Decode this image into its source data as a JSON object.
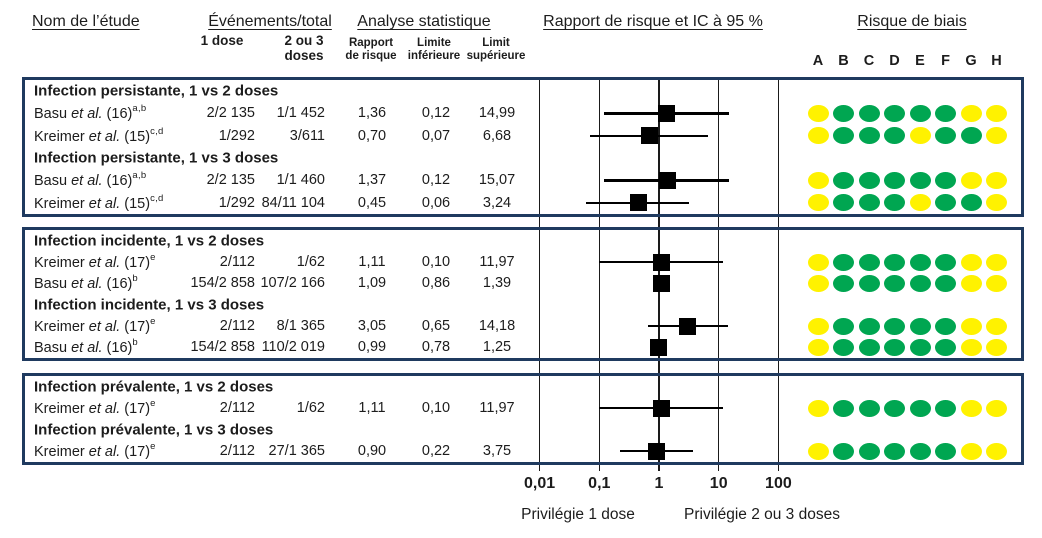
{
  "figure": {
    "headers": {
      "study": "Nom de l’étude",
      "events": "Événements/total",
      "events_sub_1dose": "1 dose",
      "events_sub_2or3": "2 ou 3\ndoses",
      "stats": "Analyse statistique",
      "stats_sub_rr": "Rapport\nde risque",
      "stats_sub_ll": "Limite\ninférieure",
      "stats_sub_ul": "Limit\nsupérieure",
      "plot": "Rapport de risque et IC à 95 %",
      "bias": "Risque de biais",
      "bias_letters": [
        "A",
        "B",
        "C",
        "D",
        "E",
        "F",
        "G",
        "H"
      ]
    },
    "sections": [
      {
        "groups": [
          {
            "label": "Infection persistante, 1 vs 2 doses",
            "studies": [
              {
                "name_pre": "Basu",
                "name_etal": "et al.",
                "name_ref": "(16)",
                "name_sup": "a,b",
                "dose1": "2/2 135",
                "doses23": "1/1 452",
                "rr": "1,36",
                "ll": "0,12",
                "ul": "14,99",
                "bias": [
                  "Y",
                  "G",
                  "G",
                  "G",
                  "G",
                  "G",
                  "Y",
                  "Y"
                ]
              },
              {
                "name_pre": "Kreimer",
                "name_etal": "et al.",
                "name_ref": "(15)",
                "name_sup": "c,d",
                "dose1": "1/292",
                "doses23": "3/611",
                "rr": "0,70",
                "ll": "0,07",
                "ul": "6,68",
                "bias": [
                  "Y",
                  "G",
                  "G",
                  "G",
                  "Y",
                  "G",
                  "G",
                  "Y"
                ]
              }
            ]
          },
          {
            "label": "Infection persistante, 1 vs 3 doses",
            "studies": [
              {
                "name_pre": "Basu",
                "name_etal": "et al.",
                "name_ref": "(16)",
                "name_sup": "a,b",
                "dose1": "2/2 135",
                "doses23": "1/1 460",
                "rr": "1,37",
                "ll": "0,12",
                "ul": "15,07",
                "bias": [
                  "Y",
                  "G",
                  "G",
                  "G",
                  "G",
                  "G",
                  "Y",
                  "Y"
                ]
              },
              {
                "name_pre": "Kreimer",
                "name_etal": "et al.",
                "name_ref": "(15)",
                "name_sup": "c,d",
                "dose1": "1/292",
                "doses23": "84/11 104",
                "rr": "0,45",
                "ll": "0,06",
                "ul": "3,24",
                "bias": [
                  "Y",
                  "G",
                  "G",
                  "G",
                  "Y",
                  "G",
                  "G",
                  "Y"
                ]
              }
            ]
          }
        ]
      },
      {
        "groups": [
          {
            "label": "Infection incidente, 1 vs 2 doses",
            "studies": [
              {
                "name_pre": "Kreimer",
                "name_etal": "et al.",
                "name_ref": "(17)",
                "name_sup": "e",
                "dose1": "2/112",
                "doses23": "1/62",
                "rr": "1,11",
                "ll": "0,10",
                "ul": "11,97",
                "bias": [
                  "Y",
                  "G",
                  "G",
                  "G",
                  "G",
                  "G",
                  "Y",
                  "Y"
                ]
              },
              {
                "name_pre": "Basu",
                "name_etal": "et al.",
                "name_ref": "(16)",
                "name_sup": "b",
                "dose1": "154/2 858",
                "doses23": "107/2 166",
                "rr": "1,09",
                "ll": "0,86",
                "ul": "1,39",
                "bias": [
                  "Y",
                  "G",
                  "G",
                  "G",
                  "G",
                  "G",
                  "Y",
                  "Y"
                ]
              }
            ]
          },
          {
            "label": "Infection incidente, 1 vs 3 doses",
            "studies": [
              {
                "name_pre": "Kreimer",
                "name_etal": "et al.",
                "name_ref": "(17)",
                "name_sup": "e",
                "dose1": "2/112",
                "doses23": "8/1 365",
                "rr": "3,05",
                "ll": "0,65",
                "ul": "14,18",
                "bias": [
                  "Y",
                  "G",
                  "G",
                  "G",
                  "G",
                  "G",
                  "Y",
                  "Y"
                ]
              },
              {
                "name_pre": "Basu",
                "name_etal": "et al.",
                "name_ref": "(16)",
                "name_sup": "b",
                "dose1": "154/2 858",
                "doses23": "110/2 019",
                "rr": "0,99",
                "ll": "0,78",
                "ul": "1,25",
                "bias": [
                  "Y",
                  "G",
                  "G",
                  "G",
                  "G",
                  "G",
                  "Y",
                  "Y"
                ]
              }
            ]
          }
        ]
      },
      {
        "groups": [
          {
            "label": "Infection prévalente, 1 vs 2 doses",
            "studies": [
              {
                "name_pre": "Kreimer",
                "name_etal": "et al.",
                "name_ref": "(17)",
                "name_sup": "e",
                "dose1": "2/112",
                "doses23": "1/62",
                "rr": "1,11",
                "ll": "0,10",
                "ul": "11,97",
                "bias": [
                  "Y",
                  "G",
                  "G",
                  "G",
                  "G",
                  "G",
                  "Y",
                  "Y"
                ]
              }
            ]
          },
          {
            "label": "Infection prévalente, 1 vs 3 doses",
            "studies": [
              {
                "name_pre": "Kreimer",
                "name_etal": "et al.",
                "name_ref": "(17)",
                "name_sup": "e",
                "dose1": "2/112",
                "doses23": "27/1 365",
                "rr": "0,90",
                "ll": "0,22",
                "ul": "3,75",
                "bias": [
                  "Y",
                  "G",
                  "G",
                  "G",
                  "G",
                  "G",
                  "Y",
                  "Y"
                ]
              }
            ]
          }
        ]
      }
    ],
    "axis": {
      "tick_labels": [
        "0,01",
        "0,1",
        "1",
        "10",
        "100"
      ],
      "tick_values": [
        0.01,
        0.1,
        1,
        10,
        100
      ],
      "caption_left": "Privilégie 1 dose",
      "caption_right": "Privilégie 2 ou 3 doses"
    },
    "colors": {
      "green": "#00A651",
      "yellow": "#FFF200",
      "navy": "#1F3A5F",
      "marker": "#000000"
    }
  },
  "chart_data": {
    "type": "scatter",
    "subtype": "forest-plot",
    "title": "Rapport de risque et IC à 95 %",
    "x_scale": "log",
    "xlim": [
      0.01,
      100
    ],
    "x_ticks": [
      0.01,
      0.1,
      1,
      10,
      100
    ],
    "x_tick_labels": [
      "0,01",
      "0,1",
      "1",
      "10",
      "100"
    ],
    "grid": "vertical-log-decades",
    "annotation_left": "Privilégie 1 dose",
    "annotation_right": "Privilégie 2 ou 3 doses",
    "points": [
      {
        "group": "Infection persistante, 1 vs 2 doses",
        "study": "Basu et al. (16)",
        "rr": 1.36,
        "ci_low": 0.12,
        "ci_high": 14.99
      },
      {
        "group": "Infection persistante, 1 vs 2 doses",
        "study": "Kreimer et al. (15)",
        "rr": 0.7,
        "ci_low": 0.07,
        "ci_high": 6.68
      },
      {
        "group": "Infection persistante, 1 vs 3 doses",
        "study": "Basu et al. (16)",
        "rr": 1.37,
        "ci_low": 0.12,
        "ci_high": 15.07
      },
      {
        "group": "Infection persistante, 1 vs 3 doses",
        "study": "Kreimer et al. (15)",
        "rr": 0.45,
        "ci_low": 0.06,
        "ci_high": 3.24
      },
      {
        "group": "Infection incidente, 1 vs 2 doses",
        "study": "Kreimer et al. (17)",
        "rr": 1.11,
        "ci_low": 0.1,
        "ci_high": 11.97
      },
      {
        "group": "Infection incidente, 1 vs 2 doses",
        "study": "Basu et al. (16)",
        "rr": 1.09,
        "ci_low": 0.86,
        "ci_high": 1.39
      },
      {
        "group": "Infection incidente, 1 vs 3 doses",
        "study": "Kreimer et al. (17)",
        "rr": 3.05,
        "ci_low": 0.65,
        "ci_high": 14.18
      },
      {
        "group": "Infection incidente, 1 vs 3 doses",
        "study": "Basu et al. (16)",
        "rr": 0.99,
        "ci_low": 0.78,
        "ci_high": 1.25
      },
      {
        "group": "Infection prévalente, 1 vs 2 doses",
        "study": "Kreimer et al. (17)",
        "rr": 1.11,
        "ci_low": 0.1,
        "ci_high": 11.97
      },
      {
        "group": "Infection prévalente, 1 vs 3 doses",
        "study": "Kreimer et al. (17)",
        "rr": 0.9,
        "ci_low": 0.22,
        "ci_high": 3.75
      }
    ]
  }
}
